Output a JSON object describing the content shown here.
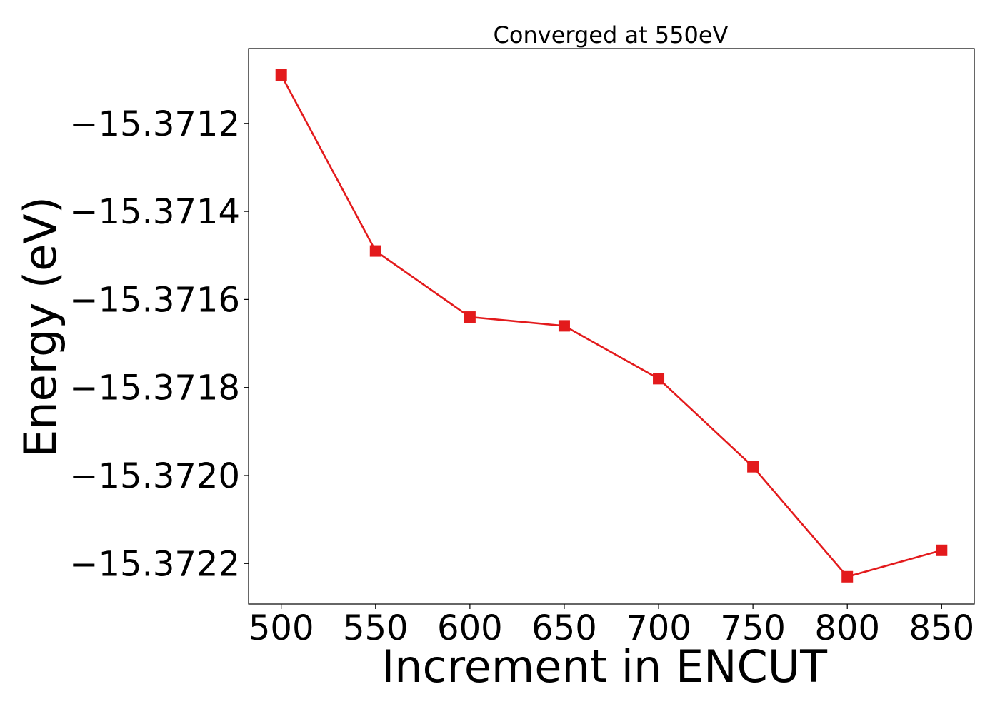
{
  "chart_data": {
    "type": "line",
    "title": "Converged at 550eV",
    "xlabel": "Increment in ENCUT",
    "ylabel": "Energy (eV)",
    "x": [
      500,
      550,
      600,
      650,
      700,
      750,
      800,
      850
    ],
    "series": [
      {
        "values": [
          -15.37109,
          -15.37149,
          -15.37164,
          -15.37166,
          -15.37178,
          -15.37198,
          -15.37223,
          -15.37217
        ],
        "color": "#e31a1c",
        "marker": "square"
      }
    ],
    "xticks": [
      500,
      550,
      600,
      650,
      700,
      750,
      800,
      850
    ],
    "xtick_labels": [
      "500",
      "550",
      "600",
      "650",
      "700",
      "750",
      "800",
      "850"
    ],
    "yticks": [
      -15.3712,
      -15.3714,
      -15.3716,
      -15.3718,
      -15.372,
      -15.3722
    ],
    "ytick_labels": [
      "−15.3712",
      "−15.3714",
      "−15.3716",
      "−15.3718",
      "−15.3720",
      "−15.3722"
    ],
    "xlim": [
      482.7,
      867.3
    ],
    "ylim": [
      -15.372292,
      -15.37103
    ],
    "grid": false,
    "legend": "none"
  }
}
